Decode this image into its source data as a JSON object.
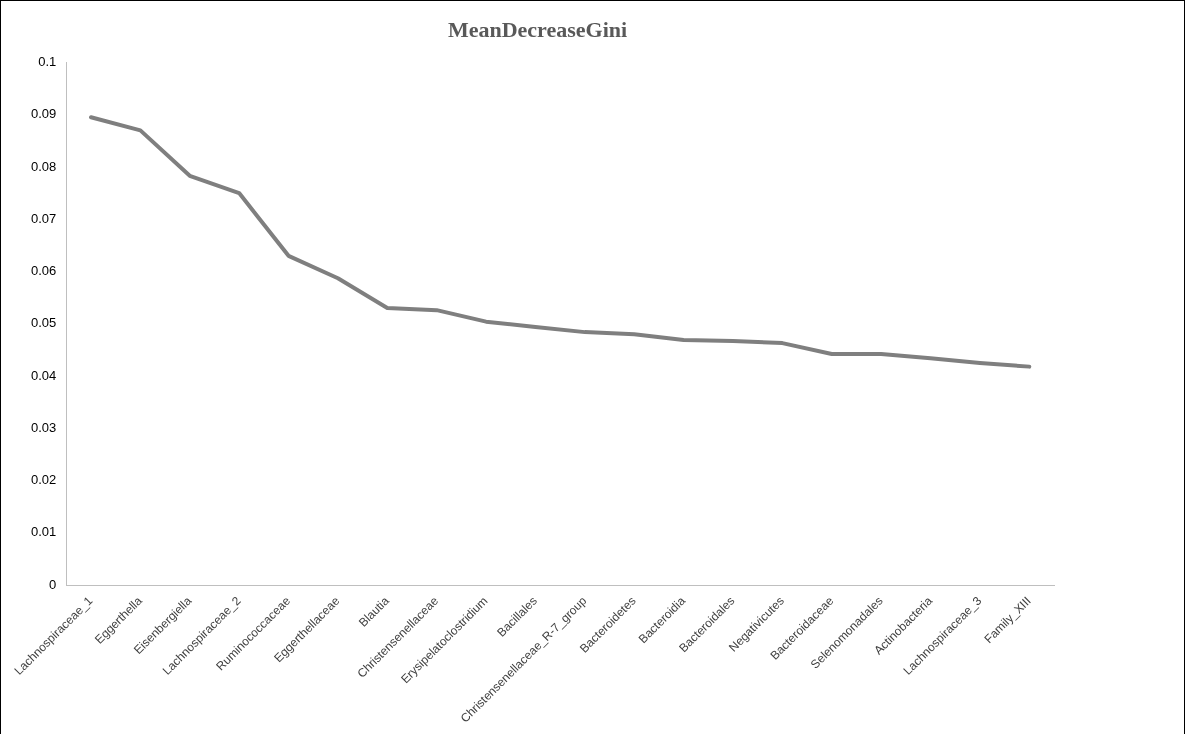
{
  "chart_data": {
    "type": "line",
    "title": "MeanDecreaseGini",
    "categories": [
      "Lachnospiraceae_1",
      "Eggerthella",
      "Eisenbergiella",
      "Lachnospiraceae_2",
      "Ruminococcaceae",
      "Eggerthellaceae",
      "Blautia",
      "Christensenellaceae",
      "Erysipelatoclostridium",
      "Bacillales",
      "Christensenellaceae_R-7_group",
      "Bacteroidetes",
      "Bacteroidia",
      "Bacteroidales",
      "Negativicutes",
      "Bacteroidaceae",
      "Selenomonadales",
      "Actinobacteria",
      "Lachnospiraceae_3",
      "Family_XIII"
    ],
    "series": [
      {
        "color": "#7f7f7f",
        "values": [
          0.0895,
          0.087,
          0.0783,
          0.075,
          0.063,
          0.0587,
          0.053,
          0.0526,
          0.0504,
          0.0494,
          0.0484,
          0.048,
          0.0469,
          0.0467,
          0.0463,
          0.0442,
          0.0442,
          0.0434,
          0.0425,
          0.0418
        ]
      }
    ],
    "ylim": [
      0,
      0.1
    ],
    "yticks": [
      0,
      0.01,
      0.02,
      0.03,
      0.04,
      0.05,
      0.06,
      0.07,
      0.08,
      0.09,
      0.1
    ],
    "grid": false,
    "legend": false,
    "marker": "none",
    "line_style": "solid"
  }
}
